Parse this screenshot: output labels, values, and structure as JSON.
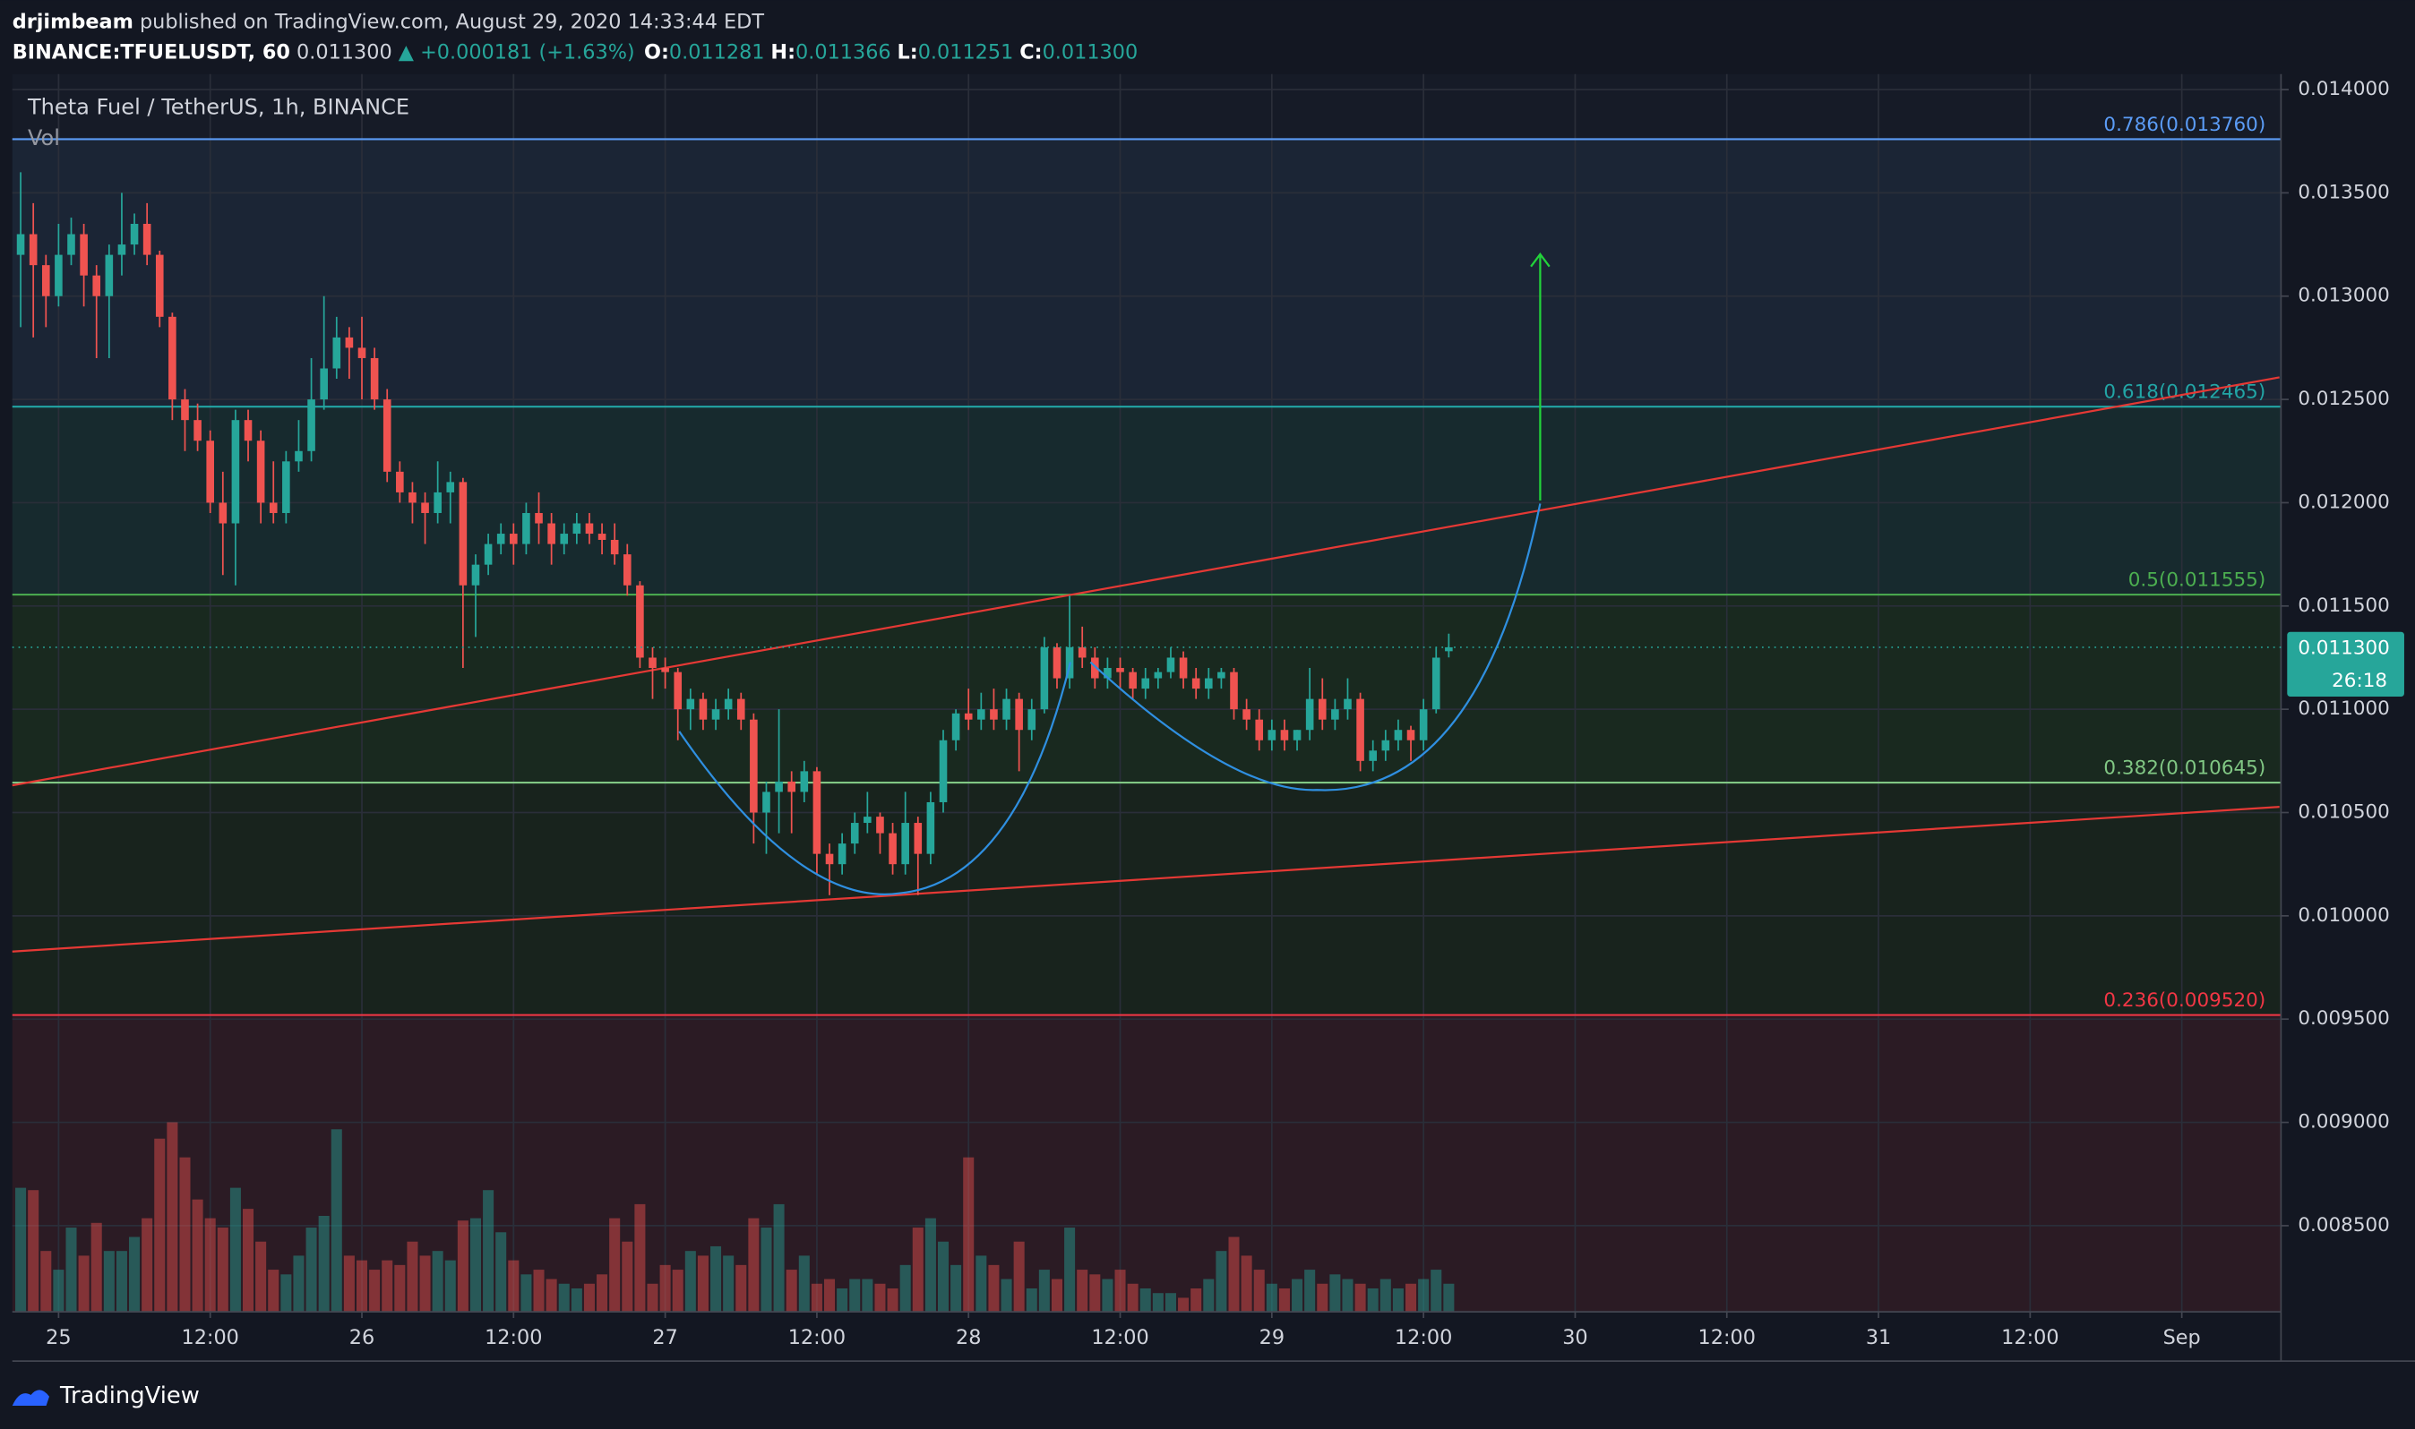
{
  "header": {
    "publisher": "drjimbeam",
    "published": "published on TradingView.com, August 29, 2020 14:33:44 EDT",
    "symbol": "BINANCE:TFUELUSDT, 60",
    "last": "0.011300",
    "change": "▲ +0.000181 (+1.63%)",
    "ohlc": [
      {
        "label": "O:",
        "value": "0.011281"
      },
      {
        "label": "H:",
        "value": "0.011366"
      },
      {
        "label": "L:",
        "value": "0.011251"
      },
      {
        "label": "C:",
        "value": "0.011300"
      }
    ]
  },
  "legend": {
    "title": "Theta Fuel / TetherUS, 1h, BINANCE",
    "volume": "Vol"
  },
  "footer": {
    "brand": "TradingView"
  },
  "chart_data": {
    "type": "candlestick",
    "up_color": "#26a69a",
    "down_color": "#ef5350",
    "xlim": [
      -3.66,
      175.85
    ],
    "ylim": [
      0.008083,
      0.014075
    ],
    "volume_ylim": [
      0,
      100
    ],
    "grid": true,
    "xticks": [
      {
        "value": 0,
        "label": "25"
      },
      {
        "value": 12,
        "label": "12:00"
      },
      {
        "value": 24,
        "label": "26"
      },
      {
        "value": 36,
        "label": "12:00"
      },
      {
        "value": 48,
        "label": "27"
      },
      {
        "value": 60,
        "label": "12:00"
      },
      {
        "value": 72,
        "label": "28"
      },
      {
        "value": 84,
        "label": "12:00"
      },
      {
        "value": 96,
        "label": "29"
      },
      {
        "value": 108,
        "label": "12:00"
      },
      {
        "value": 120,
        "label": "30"
      },
      {
        "value": 132,
        "label": "12:00"
      },
      {
        "value": 144,
        "label": "31"
      },
      {
        "value": 156,
        "label": "12:00"
      },
      {
        "value": 168,
        "label": "Sep"
      }
    ],
    "yticks": [
      {
        "value": 0.014,
        "label": "0.014000"
      },
      {
        "value": 0.0135,
        "label": "0.013500"
      },
      {
        "value": 0.013,
        "label": "0.013000"
      },
      {
        "value": 0.0125,
        "label": "0.012500"
      },
      {
        "value": 0.012,
        "label": "0.012000"
      },
      {
        "value": 0.0115,
        "label": "0.011500"
      },
      {
        "value": 0.011,
        "label": "0.011000"
      },
      {
        "value": 0.0105,
        "label": "0.010500"
      },
      {
        "value": 0.01,
        "label": "0.010000"
      },
      {
        "value": 0.0095,
        "label": "0.009500"
      },
      {
        "value": 0.009,
        "label": "0.009000"
      },
      {
        "value": 0.0085,
        "label": "0.008500"
      }
    ],
    "fib_levels": [
      {
        "value": 0.01376,
        "label": "0.786(0.013760)",
        "color": "#5b9cf6",
        "fill": "#1b2535"
      },
      {
        "value": 0.012465,
        "label": "0.618(0.012465)",
        "color": "#22a5a5",
        "fill": "#172a2e"
      },
      {
        "value": 0.011555,
        "label": "0.5(0.011555)",
        "color": "#4caf50",
        "fill": "#19291f"
      },
      {
        "value": 0.010645,
        "label": "0.382(0.010645)",
        "color": "#81c784",
        "fill": "#18231d"
      },
      {
        "value": 0.00952,
        "label": "0.236(0.009520)",
        "color": "#f23645",
        "fill": "#2b1b24"
      }
    ],
    "price_label": "0.011300",
    "countdown": "26:18",
    "x": [
      -3,
      -2,
      -1,
      0,
      1,
      2,
      3,
      4,
      5,
      6,
      7,
      8,
      9,
      10,
      11,
      12,
      13,
      14,
      15,
      16,
      17,
      18,
      19,
      20,
      21,
      22,
      23,
      24,
      25,
      26,
      27,
      28,
      29,
      30,
      31,
      32,
      33,
      34,
      35,
      36,
      37,
      38,
      39,
      40,
      41,
      42,
      43,
      44,
      45,
      46,
      47,
      48,
      49,
      50,
      51,
      52,
      53,
      54,
      55,
      56,
      57,
      58,
      59,
      60,
      61,
      62,
      63,
      64,
      65,
      66,
      67,
      68,
      69,
      70,
      71,
      72,
      73,
      74,
      75,
      76,
      77,
      78,
      79,
      80,
      81,
      82,
      83,
      84,
      85,
      86,
      87,
      88,
      89,
      90,
      91,
      92,
      93,
      94,
      95,
      96,
      97,
      98,
      99,
      100,
      101,
      102,
      103,
      104,
      105,
      106,
      107,
      108,
      109,
      110
    ],
    "ohlc": [
      [
        0.0132,
        0.0136,
        0.01285,
        0.0133
      ],
      [
        0.0133,
        0.01345,
        0.0128,
        0.01315
      ],
      [
        0.01315,
        0.0132,
        0.01285,
        0.013
      ],
      [
        0.013,
        0.01335,
        0.01295,
        0.0132
      ],
      [
        0.0132,
        0.01338,
        0.01315,
        0.0133
      ],
      [
        0.0133,
        0.01335,
        0.01295,
        0.0131
      ],
      [
        0.0131,
        0.01315,
        0.0127,
        0.013
      ],
      [
        0.013,
        0.01325,
        0.0127,
        0.0132
      ],
      [
        0.0132,
        0.0135,
        0.0131,
        0.01325
      ],
      [
        0.01325,
        0.0134,
        0.0132,
        0.01335
      ],
      [
        0.01335,
        0.01345,
        0.01315,
        0.0132
      ],
      [
        0.0132,
        0.01322,
        0.01285,
        0.0129
      ],
      [
        0.0129,
        0.01292,
        0.0124,
        0.0125
      ],
      [
        0.0125,
        0.01255,
        0.01225,
        0.0124
      ],
      [
        0.0124,
        0.01248,
        0.01225,
        0.0123
      ],
      [
        0.0123,
        0.01235,
        0.01195,
        0.012
      ],
      [
        0.012,
        0.01215,
        0.01165,
        0.0119
      ],
      [
        0.0119,
        0.01245,
        0.0116,
        0.0124
      ],
      [
        0.0124,
        0.01245,
        0.0122,
        0.0123
      ],
      [
        0.0123,
        0.01235,
        0.0119,
        0.012
      ],
      [
        0.012,
        0.0122,
        0.0119,
        0.01195
      ],
      [
        0.01195,
        0.01225,
        0.0119,
        0.0122
      ],
      [
        0.0122,
        0.0124,
        0.01215,
        0.01225
      ],
      [
        0.01225,
        0.0127,
        0.0122,
        0.0125
      ],
      [
        0.0125,
        0.013,
        0.01245,
        0.01265
      ],
      [
        0.01265,
        0.0129,
        0.0126,
        0.0128
      ],
      [
        0.0128,
        0.01285,
        0.0126,
        0.01275
      ],
      [
        0.01275,
        0.0129,
        0.0125,
        0.0127
      ],
      [
        0.0127,
        0.01275,
        0.01245,
        0.0125
      ],
      [
        0.0125,
        0.01255,
        0.0121,
        0.01215
      ],
      [
        0.01215,
        0.0122,
        0.012,
        0.01205
      ],
      [
        0.01205,
        0.0121,
        0.0119,
        0.012
      ],
      [
        0.012,
        0.01205,
        0.0118,
        0.01195
      ],
      [
        0.01195,
        0.0122,
        0.0119,
        0.01205
      ],
      [
        0.01205,
        0.01215,
        0.0119,
        0.0121
      ],
      [
        0.0121,
        0.01212,
        0.0112,
        0.0116
      ],
      [
        0.0116,
        0.01175,
        0.01135,
        0.0117
      ],
      [
        0.0117,
        0.01185,
        0.01165,
        0.0118
      ],
      [
        0.0118,
        0.0119,
        0.01175,
        0.01185
      ],
      [
        0.01185,
        0.0119,
        0.0117,
        0.0118
      ],
      [
        0.0118,
        0.012,
        0.01175,
        0.01195
      ],
      [
        0.01195,
        0.01205,
        0.0118,
        0.0119
      ],
      [
        0.0119,
        0.01195,
        0.0117,
        0.0118
      ],
      [
        0.0118,
        0.0119,
        0.01175,
        0.01185
      ],
      [
        0.01185,
        0.01195,
        0.0118,
        0.0119
      ],
      [
        0.0119,
        0.01195,
        0.0118,
        0.01185
      ],
      [
        0.01185,
        0.0119,
        0.01175,
        0.01182
      ],
      [
        0.01182,
        0.0119,
        0.0117,
        0.01175
      ],
      [
        0.01175,
        0.0118,
        0.01155,
        0.0116
      ],
      [
        0.0116,
        0.01162,
        0.0112,
        0.01125
      ],
      [
        0.01125,
        0.0113,
        0.01105,
        0.0112
      ],
      [
        0.0112,
        0.01125,
        0.0111,
        0.01118
      ],
      [
        0.01118,
        0.0112,
        0.01085,
        0.011
      ],
      [
        0.011,
        0.0111,
        0.0109,
        0.01105
      ],
      [
        0.01105,
        0.01108,
        0.0109,
        0.01095
      ],
      [
        0.01095,
        0.01105,
        0.0109,
        0.011
      ],
      [
        0.011,
        0.0111,
        0.01095,
        0.01105
      ],
      [
        0.01105,
        0.01108,
        0.0109,
        0.01095
      ],
      [
        0.01095,
        0.01098,
        0.01035,
        0.0105
      ],
      [
        0.0105,
        0.01065,
        0.0103,
        0.0106
      ],
      [
        0.0106,
        0.011,
        0.0104,
        0.01065
      ],
      [
        0.01065,
        0.0107,
        0.0104,
        0.0106
      ],
      [
        0.0106,
        0.01075,
        0.01055,
        0.0107
      ],
      [
        0.0107,
        0.01072,
        0.0102,
        0.0103
      ],
      [
        0.0103,
        0.01035,
        0.0101,
        0.01025
      ],
      [
        0.01025,
        0.0104,
        0.0102,
        0.01035
      ],
      [
        0.01035,
        0.0105,
        0.0103,
        0.01045
      ],
      [
        0.01045,
        0.0106,
        0.0104,
        0.01048
      ],
      [
        0.01048,
        0.0105,
        0.0103,
        0.0104
      ],
      [
        0.0104,
        0.01045,
        0.0102,
        0.01025
      ],
      [
        0.01025,
        0.0106,
        0.0102,
        0.01045
      ],
      [
        0.01045,
        0.01048,
        0.0101,
        0.0103
      ],
      [
        0.0103,
        0.0106,
        0.01025,
        0.01055
      ],
      [
        0.01055,
        0.0109,
        0.0105,
        0.01085
      ],
      [
        0.01085,
        0.011,
        0.0108,
        0.01098
      ],
      [
        0.01098,
        0.0111,
        0.0109,
        0.01095
      ],
      [
        0.01095,
        0.01108,
        0.0109,
        0.011
      ],
      [
        0.011,
        0.0111,
        0.0109,
        0.01095
      ],
      [
        0.01095,
        0.0111,
        0.0109,
        0.01105
      ],
      [
        0.01105,
        0.01108,
        0.0107,
        0.0109
      ],
      [
        0.0109,
        0.01105,
        0.01085,
        0.011
      ],
      [
        0.011,
        0.01135,
        0.01098,
        0.0113
      ],
      [
        0.0113,
        0.01132,
        0.0111,
        0.01115
      ],
      [
        0.01115,
        0.01155,
        0.0111,
        0.0113
      ],
      [
        0.0113,
        0.0114,
        0.0112,
        0.01125
      ],
      [
        0.01125,
        0.0113,
        0.0111,
        0.01115
      ],
      [
        0.01115,
        0.01125,
        0.0111,
        0.0112
      ],
      [
        0.0112,
        0.01125,
        0.0111,
        0.01118
      ],
      [
        0.01118,
        0.0112,
        0.01105,
        0.0111
      ],
      [
        0.0111,
        0.0112,
        0.01105,
        0.01115
      ],
      [
        0.01115,
        0.0112,
        0.0111,
        0.01118
      ],
      [
        0.01118,
        0.0113,
        0.01115,
        0.01125
      ],
      [
        0.01125,
        0.01128,
        0.0111,
        0.01115
      ],
      [
        0.01115,
        0.0112,
        0.01105,
        0.0111
      ],
      [
        0.0111,
        0.0112,
        0.01105,
        0.01115
      ],
      [
        0.01115,
        0.0112,
        0.0111,
        0.01118
      ],
      [
        0.01118,
        0.0112,
        0.01095,
        0.011
      ],
      [
        0.011,
        0.01105,
        0.0109,
        0.01095
      ],
      [
        0.01095,
        0.011,
        0.0108,
        0.01085
      ],
      [
        0.01085,
        0.01095,
        0.0108,
        0.0109
      ],
      [
        0.0109,
        0.01095,
        0.0108,
        0.01085
      ],
      [
        0.01085,
        0.0109,
        0.0108,
        0.0109
      ],
      [
        0.0109,
        0.0112,
        0.01085,
        0.01105
      ],
      [
        0.01105,
        0.01115,
        0.0109,
        0.01095
      ],
      [
        0.01095,
        0.01105,
        0.0109,
        0.011
      ],
      [
        0.011,
        0.01115,
        0.01095,
        0.01105
      ],
      [
        0.01105,
        0.01108,
        0.0107,
        0.01075
      ],
      [
        0.01075,
        0.01085,
        0.0107,
        0.0108
      ],
      [
        0.0108,
        0.0109,
        0.01075,
        0.01085
      ],
      [
        0.01085,
        0.01095,
        0.0108,
        0.0109
      ],
      [
        0.0109,
        0.01092,
        0.01075,
        0.01085
      ],
      [
        0.01085,
        0.01105,
        0.0108,
        0.011
      ],
      [
        0.011,
        0.0113,
        0.01098,
        0.01125
      ],
      [
        0.011281,
        0.011366,
        0.011251,
        0.0113
      ]
    ],
    "volume": [
      53,
      52,
      26,
      18,
      36,
      24,
      38,
      26,
      26,
      32,
      40,
      74,
      81,
      66,
      48,
      40,
      36,
      53,
      44,
      30,
      18,
      16,
      24,
      36,
      41,
      78,
      24,
      22,
      18,
      22,
      20,
      30,
      24,
      26,
      22,
      39,
      40,
      52,
      34,
      22,
      16,
      18,
      14,
      12,
      10,
      12,
      16,
      40,
      30,
      46,
      12,
      20,
      18,
      26,
      24,
      28,
      24,
      20,
      40,
      36,
      46,
      18,
      24,
      12,
      14,
      10,
      14,
      14,
      12,
      10,
      20,
      36,
      40,
      30,
      20,
      66,
      24,
      20,
      14,
      30,
      10,
      18,
      14,
      36,
      18,
      16,
      14,
      18,
      12,
      10,
      8,
      8,
      6,
      10,
      14,
      26,
      32,
      24,
      18,
      12,
      10,
      14,
      18,
      12,
      16,
      14,
      12,
      10,
      14,
      10,
      12,
      14,
      18,
      12
    ]
  }
}
